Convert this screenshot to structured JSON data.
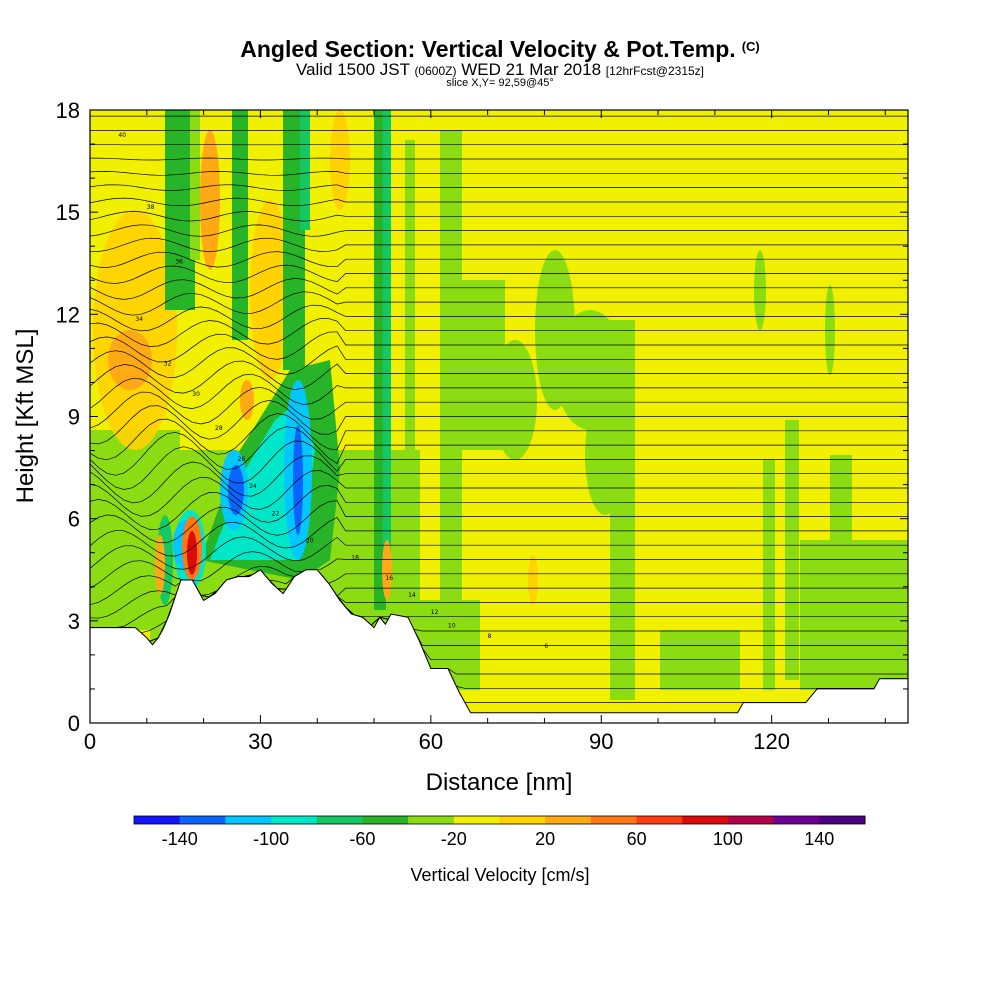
{
  "title_main": "Angled Section: Vertical Velocity & Pot.Temp.",
  "title_main_unit": "(C)",
  "subtitle_valid": "Valid 1500 JST",
  "subtitle_utc": "(0600Z)",
  "subtitle_date": "WED 21 Mar 2018",
  "subtitle_fcst": "[12hrFcst@2315z]",
  "subtitle_slice": "slice X,Y= 92,59@45°",
  "chart_data": {
    "type": "heatmap",
    "xlabel": "Distance [nm]",
    "ylabel": "Height [Kft MSL]",
    "xlim": [
      0,
      144
    ],
    "ylim": [
      0,
      18
    ],
    "x_ticks": [
      0,
      30,
      60,
      90,
      120
    ],
    "y_ticks": [
      0,
      3,
      6,
      9,
      12,
      15,
      18
    ],
    "colorbar": {
      "title": "Vertical Velocity [cm/s]",
      "bounds": [
        -160,
        160
      ],
      "labels": [
        -140,
        -100,
        -60,
        -20,
        20,
        60,
        100,
        140
      ],
      "colors": [
        "#1414ff",
        "#0a64ff",
        "#00c8ff",
        "#00e6c8",
        "#14c864",
        "#28b428",
        "#8cdc14",
        "#f0f000",
        "#ffd200",
        "#ffaa14",
        "#ff7814",
        "#ff3c14",
        "#dc0a0a",
        "#b4004b",
        "#6e0096",
        "#4b0082"
      ]
    },
    "terrain_kft": [
      [
        0,
        2.8
      ],
      [
        4,
        2.8
      ],
      [
        8,
        2.8
      ],
      [
        10,
        2.5
      ],
      [
        11,
        2.3
      ],
      [
        12,
        2.5
      ],
      [
        13,
        2.8
      ],
      [
        14,
        3.2
      ],
      [
        16,
        4.2
      ],
      [
        18,
        4.2
      ],
      [
        20,
        3.6
      ],
      [
        22,
        3.8
      ],
      [
        24,
        4.2
      ],
      [
        26,
        4.3
      ],
      [
        28,
        4.3
      ],
      [
        30,
        4.5
      ],
      [
        32,
        4.1
      ],
      [
        34,
        3.8
      ],
      [
        36,
        4.3
      ],
      [
        38,
        4.5
      ],
      [
        40,
        4.5
      ],
      [
        42,
        4.1
      ],
      [
        44,
        3.6
      ],
      [
        46,
        3.2
      ],
      [
        48,
        3.1
      ],
      [
        50,
        2.8
      ],
      [
        51,
        3.1
      ],
      [
        52,
        2.9
      ],
      [
        53,
        3.2
      ],
      [
        56,
        3.1
      ],
      [
        58,
        2.4
      ],
      [
        60,
        1.6
      ],
      [
        63,
        1.6
      ],
      [
        65,
        0.9
      ],
      [
        67,
        0.3
      ],
      [
        75,
        0.3
      ],
      [
        80,
        0.3
      ],
      [
        90,
        0.3
      ],
      [
        100,
        0.3
      ],
      [
        110,
        0.3
      ],
      [
        114,
        0.3
      ],
      [
        115,
        0.6
      ],
      [
        126,
        0.6
      ],
      [
        128,
        1.0
      ],
      [
        138,
        1.0
      ],
      [
        139,
        1.3
      ],
      [
        144,
        1.3
      ]
    ],
    "isentrope_labels": [
      "40",
      "38",
      "36",
      "34",
      "32",
      "30",
      "28",
      "26",
      "24",
      "22",
      "20",
      "18",
      "16",
      "14",
      "12",
      "10",
      "8",
      "6"
    ]
  }
}
